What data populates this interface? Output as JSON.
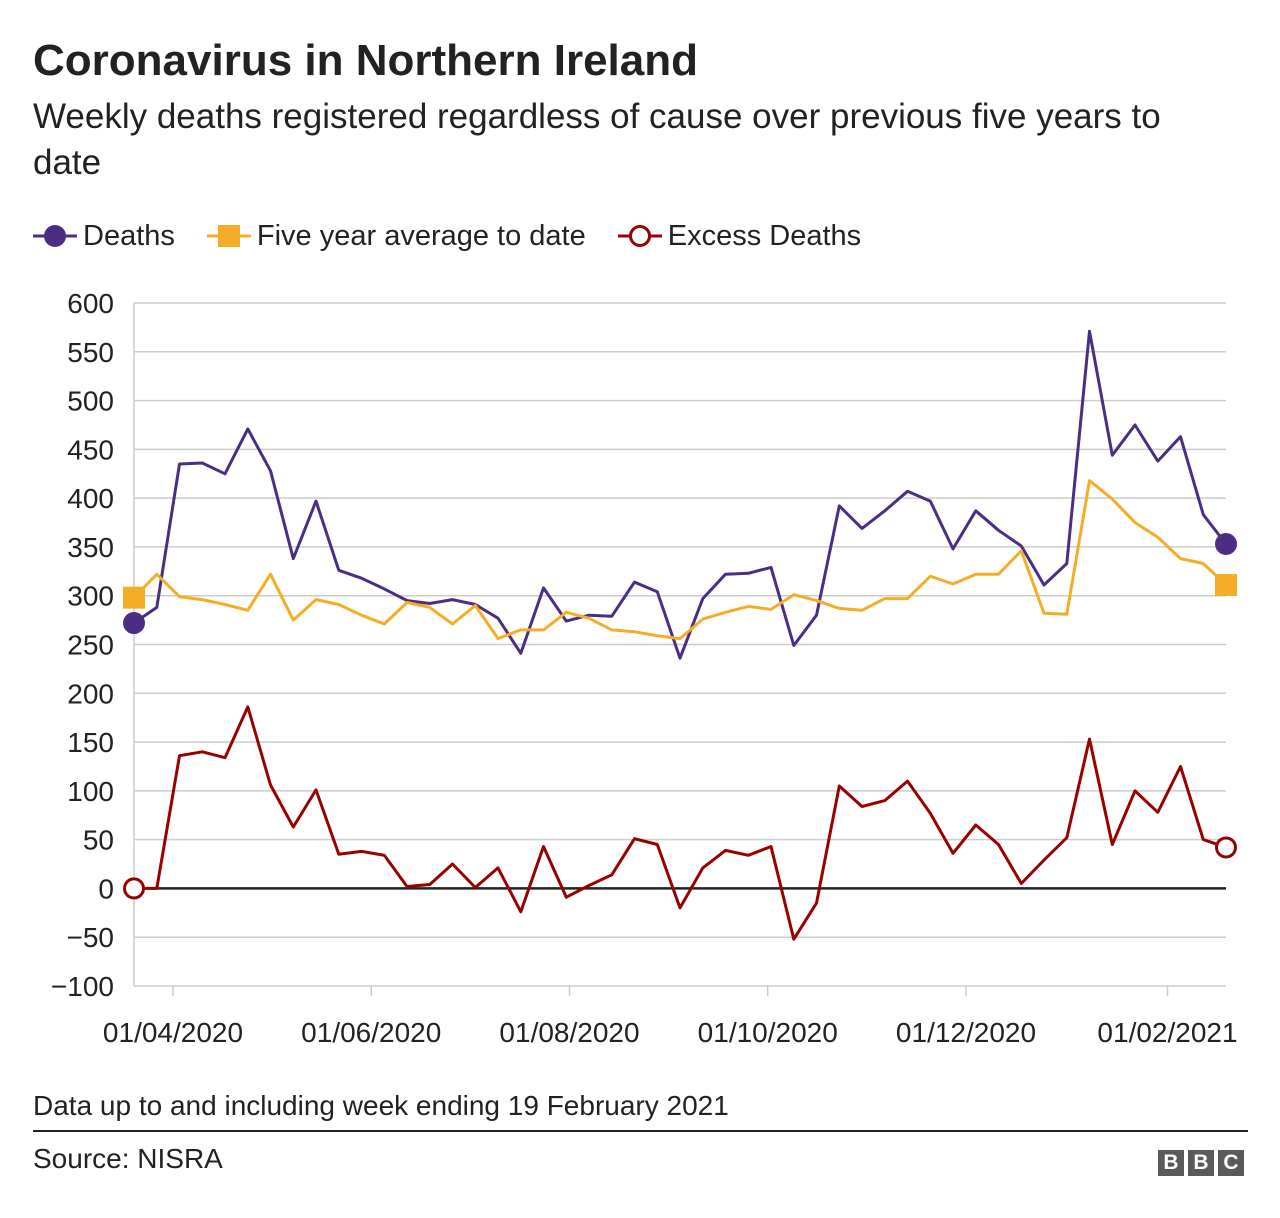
{
  "header": {
    "title": "Coronavirus in Northern Ireland",
    "subtitle": "Weekly deaths registered regardless of cause over previous five years to date"
  },
  "footer": {
    "note": "Data up to and including week ending 19 February 2021",
    "source": "Source: NISRA",
    "logo_letters": [
      "B",
      "B",
      "C"
    ]
  },
  "chart_data": {
    "type": "line",
    "title": "Coronavirus in Northern Ireland",
    "subtitle": "Weekly deaths registered regardless of cause over previous five years to date",
    "xlabel": "",
    "ylabel": "",
    "ylim": [
      -100,
      600
    ],
    "y_ticks": [
      600,
      550,
      500,
      450,
      400,
      350,
      300,
      250,
      200,
      150,
      100,
      50,
      0,
      -50,
      -100
    ],
    "y_tick_labels": [
      "600",
      "550",
      "500",
      "450",
      "400",
      "350",
      "300",
      "250",
      "200",
      "150",
      "100",
      "50",
      "0",
      "−50",
      "−100"
    ],
    "x_ticks": [
      "2020-04-01",
      "2020-06-01",
      "2020-08-01",
      "2020-10-01",
      "2020-12-01",
      "2021-02-01"
    ],
    "x_tick_labels": [
      "01/04/2020",
      "01/06/2020",
      "01/08/2020",
      "01/10/2020",
      "01/12/2020",
      "01/02/2021"
    ],
    "x_range": [
      "2020-03-20",
      "2021-02-19"
    ],
    "grid": true,
    "zero_line": true,
    "legend_position": "top-left",
    "x": [
      "2020-03-20",
      "2020-03-27",
      "2020-04-03",
      "2020-04-10",
      "2020-04-17",
      "2020-04-24",
      "2020-05-01",
      "2020-05-08",
      "2020-05-15",
      "2020-05-22",
      "2020-05-29",
      "2020-06-05",
      "2020-06-12",
      "2020-06-19",
      "2020-06-26",
      "2020-07-03",
      "2020-07-10",
      "2020-07-17",
      "2020-07-24",
      "2020-07-31",
      "2020-08-07",
      "2020-08-14",
      "2020-08-21",
      "2020-08-28",
      "2020-09-04",
      "2020-09-11",
      "2020-09-18",
      "2020-09-25",
      "2020-10-02",
      "2020-10-09",
      "2020-10-16",
      "2020-10-23",
      "2020-10-30",
      "2020-11-06",
      "2020-11-13",
      "2020-11-20",
      "2020-11-27",
      "2020-12-04",
      "2020-12-11",
      "2020-12-18",
      "2020-12-25",
      "2021-01-01",
      "2021-01-08",
      "2021-01-15",
      "2021-01-22",
      "2021-01-29",
      "2021-02-05",
      "2021-02-12",
      "2021-02-19"
    ],
    "series": [
      {
        "name": "Deaths",
        "color": "#4b2e83",
        "marker": "filled-circle",
        "values": [
          272,
          288,
          435,
          436,
          425,
          471,
          428,
          338,
          397,
          326,
          318,
          307,
          295,
          292,
          296,
          291,
          277,
          241,
          308,
          274,
          280,
          279,
          314,
          304,
          236,
          297,
          322,
          323,
          329,
          249,
          280,
          392,
          369,
          387,
          407,
          397,
          348,
          387,
          367,
          351,
          311,
          333,
          571,
          444,
          475,
          438,
          463,
          383,
          353
        ]
      },
      {
        "name": "Five year average to date",
        "color": "#f5ad28",
        "marker": "filled-square",
        "values": [
          298,
          322,
          299,
          296,
          291,
          285,
          322,
          275,
          296,
          291,
          280,
          271,
          293,
          288,
          271,
          290,
          256,
          265,
          265,
          283,
          277,
          265,
          263,
          259,
          256,
          276,
          283,
          289,
          286,
          301,
          295,
          287,
          285,
          297,
          297,
          320,
          312,
          322,
          322,
          346,
          282,
          281,
          418,
          399,
          375,
          360,
          338,
          333,
          311
        ]
      },
      {
        "name": "Excess Deaths",
        "color": "#990000",
        "marker": "open-circle",
        "values": [
          0,
          0,
          136,
          140,
          134,
          186,
          106,
          63,
          101,
          35,
          38,
          34,
          2,
          4,
          25,
          1,
          21,
          -24,
          43,
          -9,
          3,
          14,
          51,
          45,
          -20,
          21,
          39,
          34,
          43,
          -52,
          -15,
          105,
          84,
          90,
          110,
          77,
          36,
          65,
          45,
          5,
          29,
          52,
          153,
          45,
          100,
          78,
          125,
          50,
          42
        ]
      }
    ]
  }
}
